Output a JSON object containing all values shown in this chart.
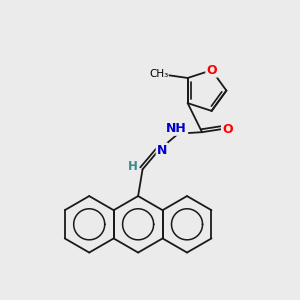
{
  "background_color": "#ebebeb",
  "atom_colors": {
    "C": "#000000",
    "N": "#0000cc",
    "O": "#ff0000",
    "H": "#3a8a8a"
  },
  "bond_color": "#1a1a1a",
  "figsize": [
    3.0,
    3.0
  ],
  "dpi": 100
}
